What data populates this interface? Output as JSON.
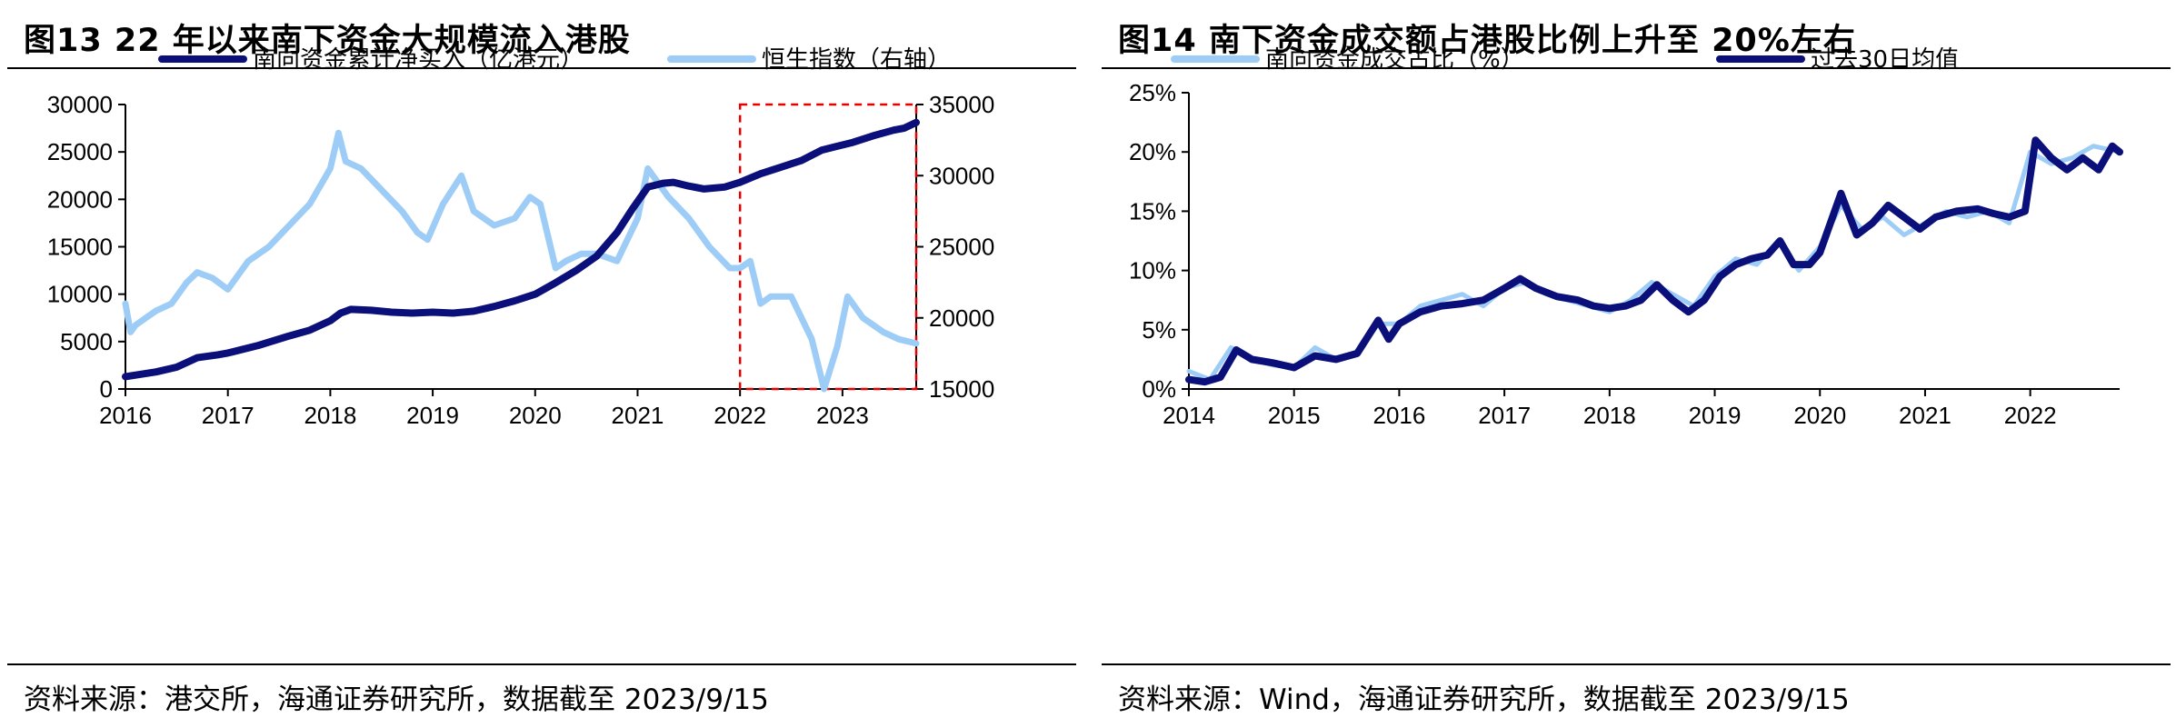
{
  "figures": [
    {
      "title": "图13 22 年以来南下资金大规模流入港股",
      "source": "资料来源：港交所，海通证券研究所，数据截至 2023/9/15"
    },
    {
      "title": "图14 南下资金成交额占港股比例上升至 20%左右",
      "source": "资料来源：Wind，海通证券研究所，数据截至 2023/9/15"
    }
  ],
  "colors": {
    "dark_navy": "#0b0f7a",
    "light_blue": "#9dcdf7",
    "highlight_box": "#e60000"
  },
  "chart_data": [
    {
      "type": "line",
      "x_ticks": [
        "2016",
        "2017",
        "2018",
        "2019",
        "2020",
        "2021",
        "2022",
        "2023"
      ],
      "xlim": [
        2016.0,
        2023.72
      ],
      "y_left_ticks": [
        "0",
        "5000",
        "10000",
        "15000",
        "20000",
        "25000",
        "30000"
      ],
      "ylim_left": [
        0,
        30000
      ],
      "y_right_ticks": [
        "15000",
        "20000",
        "25000",
        "30000",
        "35000"
      ],
      "ylim_right": [
        15000,
        35000
      ],
      "legend_position": "top",
      "highlight_range": [
        2022.0,
        2023.72
      ],
      "series": [
        {
          "name": "南向资金累计净买入（亿港元）",
          "axis": "left",
          "color": "#0b0f7a",
          "points": [
            [
              2016.0,
              1300
            ],
            [
              2016.3,
              1800
            ],
            [
              2016.5,
              2300
            ],
            [
              2016.7,
              3300
            ],
            [
              2016.9,
              3600
            ],
            [
              2017.0,
              3800
            ],
            [
              2017.3,
              4600
            ],
            [
              2017.6,
              5600
            ],
            [
              2017.8,
              6200
            ],
            [
              2018.0,
              7200
            ],
            [
              2018.1,
              8000
            ],
            [
              2018.2,
              8400
            ],
            [
              2018.4,
              8300
            ],
            [
              2018.6,
              8100
            ],
            [
              2018.8,
              8000
            ],
            [
              2019.0,
              8100
            ],
            [
              2019.2,
              8000
            ],
            [
              2019.4,
              8200
            ],
            [
              2019.6,
              8700
            ],
            [
              2019.8,
              9300
            ],
            [
              2020.0,
              10000
            ],
            [
              2020.2,
              11200
            ],
            [
              2020.4,
              12500
            ],
            [
              2020.6,
              14000
            ],
            [
              2020.8,
              16500
            ],
            [
              2020.95,
              19000
            ],
            [
              2021.1,
              21300
            ],
            [
              2021.25,
              21700
            ],
            [
              2021.35,
              21800
            ],
            [
              2021.5,
              21400
            ],
            [
              2021.65,
              21100
            ],
            [
              2021.85,
              21300
            ],
            [
              2022.0,
              21800
            ],
            [
              2022.2,
              22700
            ],
            [
              2022.4,
              23400
            ],
            [
              2022.6,
              24100
            ],
            [
              2022.8,
              25200
            ],
            [
              2022.95,
              25600
            ],
            [
              2023.1,
              26000
            ],
            [
              2023.3,
              26700
            ],
            [
              2023.5,
              27300
            ],
            [
              2023.6,
              27500
            ],
            [
              2023.72,
              28100
            ]
          ]
        },
        {
          "name": "恒生指数（右轴）",
          "axis": "right",
          "color": "#9dcdf7",
          "points": [
            [
              2016.0,
              21000
            ],
            [
              2016.05,
              19000
            ],
            [
              2016.1,
              19500
            ],
            [
              2016.2,
              20000
            ],
            [
              2016.3,
              20500
            ],
            [
              2016.45,
              21000
            ],
            [
              2016.6,
              22500
            ],
            [
              2016.7,
              23200
            ],
            [
              2016.85,
              22800
            ],
            [
              2017.0,
              22000
            ],
            [
              2017.2,
              24000
            ],
            [
              2017.4,
              25000
            ],
            [
              2017.6,
              26500
            ],
            [
              2017.8,
              28000
            ],
            [
              2018.0,
              30500
            ],
            [
              2018.08,
              33000
            ],
            [
              2018.15,
              31000
            ],
            [
              2018.3,
              30500
            ],
            [
              2018.5,
              29000
            ],
            [
              2018.7,
              27500
            ],
            [
              2018.85,
              26000
            ],
            [
              2018.95,
              25500
            ],
            [
              2019.1,
              28000
            ],
            [
              2019.28,
              30000
            ],
            [
              2019.4,
              27500
            ],
            [
              2019.6,
              26500
            ],
            [
              2019.8,
              27000
            ],
            [
              2019.95,
              28500
            ],
            [
              2020.05,
              28000
            ],
            [
              2020.2,
              23500
            ],
            [
              2020.3,
              24000
            ],
            [
              2020.45,
              24500
            ],
            [
              2020.6,
              24500
            ],
            [
              2020.8,
              24000
            ],
            [
              2021.0,
              27000
            ],
            [
              2021.1,
              30500
            ],
            [
              2021.3,
              28500
            ],
            [
              2021.5,
              27000
            ],
            [
              2021.7,
              25000
            ],
            [
              2021.9,
              23500
            ],
            [
              2022.0,
              23500
            ],
            [
              2022.1,
              24000
            ],
            [
              2022.2,
              21000
            ],
            [
              2022.3,
              21500
            ],
            [
              2022.5,
              21500
            ],
            [
              2022.7,
              18500
            ],
            [
              2022.82,
              15000
            ],
            [
              2022.95,
              18000
            ],
            [
              2023.05,
              21500
            ],
            [
              2023.2,
              20000
            ],
            [
              2023.4,
              19000
            ],
            [
              2023.55,
              18500
            ],
            [
              2023.72,
              18200
            ]
          ]
        }
      ]
    },
    {
      "type": "line",
      "x_ticks": [
        "2014",
        "2015",
        "2016",
        "2017",
        "2018",
        "2019",
        "2020",
        "2021",
        "2022"
      ],
      "xlim": [
        2014.0,
        2022.85
      ],
      "y_ticks": [
        "0%",
        "5%",
        "10%",
        "15%",
        "20%",
        "25%"
      ],
      "ylim": [
        0,
        25
      ],
      "legend_position": "top",
      "series": [
        {
          "name": "南向资金成交占比（%）",
          "color": "#9dcdf7",
          "points": [
            [
              2014.0,
              1.5
            ],
            [
              2014.2,
              0.8
            ],
            [
              2014.4,
              3.5
            ],
            [
              2014.6,
              2.5
            ],
            [
              2014.8,
              2.0
            ],
            [
              2015.0,
              1.8
            ],
            [
              2015.2,
              3.5
            ],
            [
              2015.4,
              2.5
            ],
            [
              2015.6,
              3.0
            ],
            [
              2015.8,
              5.5
            ],
            [
              2016.0,
              5.5
            ],
            [
              2016.2,
              7.0
            ],
            [
              2016.4,
              7.5
            ],
            [
              2016.6,
              8.0
            ],
            [
              2016.8,
              7.0
            ],
            [
              2017.0,
              8.5
            ],
            [
              2017.2,
              9.0
            ],
            [
              2017.4,
              8.0
            ],
            [
              2017.6,
              7.5
            ],
            [
              2017.8,
              7.0
            ],
            [
              2018.0,
              6.5
            ],
            [
              2018.2,
              7.5
            ],
            [
              2018.4,
              9.0
            ],
            [
              2018.6,
              8.0
            ],
            [
              2018.8,
              7.0
            ],
            [
              2019.0,
              9.5
            ],
            [
              2019.2,
              11.0
            ],
            [
              2019.4,
              10.5
            ],
            [
              2019.6,
              12.5
            ],
            [
              2019.8,
              10.0
            ],
            [
              2020.0,
              12.0
            ],
            [
              2020.2,
              15.5
            ],
            [
              2020.4,
              13.5
            ],
            [
              2020.6,
              14.5
            ],
            [
              2020.8,
              13.0
            ],
            [
              2021.0,
              14.0
            ],
            [
              2021.2,
              15.0
            ],
            [
              2021.4,
              14.5
            ],
            [
              2021.6,
              15.0
            ],
            [
              2021.8,
              14.0
            ],
            [
              2022.0,
              20.0
            ],
            [
              2022.2,
              19.0
            ],
            [
              2022.4,
              19.5
            ],
            [
              2022.6,
              20.5
            ],
            [
              2022.85,
              20.0
            ]
          ]
        },
        {
          "name": "过去30日均值",
          "color": "#0b0f7a",
          "points": [
            [
              2014.0,
              0.8
            ],
            [
              2014.15,
              0.6
            ],
            [
              2014.3,
              1.0
            ],
            [
              2014.45,
              3.3
            ],
            [
              2014.6,
              2.5
            ],
            [
              2014.8,
              2.2
            ],
            [
              2015.0,
              1.8
            ],
            [
              2015.2,
              2.8
            ],
            [
              2015.4,
              2.5
            ],
            [
              2015.6,
              3.0
            ],
            [
              2015.8,
              5.8
            ],
            [
              2015.9,
              4.2
            ],
            [
              2016.0,
              5.5
            ],
            [
              2016.2,
              6.5
            ],
            [
              2016.4,
              7.0
            ],
            [
              2016.6,
              7.2
            ],
            [
              2016.8,
              7.5
            ],
            [
              2017.0,
              8.5
            ],
            [
              2017.15,
              9.3
            ],
            [
              2017.3,
              8.5
            ],
            [
              2017.5,
              7.8
            ],
            [
              2017.7,
              7.5
            ],
            [
              2017.85,
              7.0
            ],
            [
              2018.0,
              6.8
            ],
            [
              2018.15,
              7.0
            ],
            [
              2018.3,
              7.5
            ],
            [
              2018.45,
              8.8
            ],
            [
              2018.6,
              7.5
            ],
            [
              2018.75,
              6.5
            ],
            [
              2018.9,
              7.5
            ],
            [
              2019.05,
              9.5
            ],
            [
              2019.2,
              10.5
            ],
            [
              2019.35,
              11.0
            ],
            [
              2019.5,
              11.3
            ],
            [
              2019.62,
              12.5
            ],
            [
              2019.75,
              10.5
            ],
            [
              2019.9,
              10.5
            ],
            [
              2020.0,
              11.5
            ],
            [
              2020.2,
              16.5
            ],
            [
              2020.35,
              13.0
            ],
            [
              2020.5,
              14.0
            ],
            [
              2020.65,
              15.5
            ],
            [
              2020.8,
              14.5
            ],
            [
              2020.95,
              13.5
            ],
            [
              2021.1,
              14.5
            ],
            [
              2021.3,
              15.0
            ],
            [
              2021.5,
              15.2
            ],
            [
              2021.65,
              14.8
            ],
            [
              2021.8,
              14.5
            ],
            [
              2021.95,
              15.0
            ],
            [
              2022.05,
              21.0
            ],
            [
              2022.2,
              19.5
            ],
            [
              2022.35,
              18.5
            ],
            [
              2022.5,
              19.5
            ],
            [
              2022.65,
              18.5
            ],
            [
              2022.78,
              20.5
            ],
            [
              2022.85,
              20.0
            ]
          ]
        }
      ]
    }
  ]
}
